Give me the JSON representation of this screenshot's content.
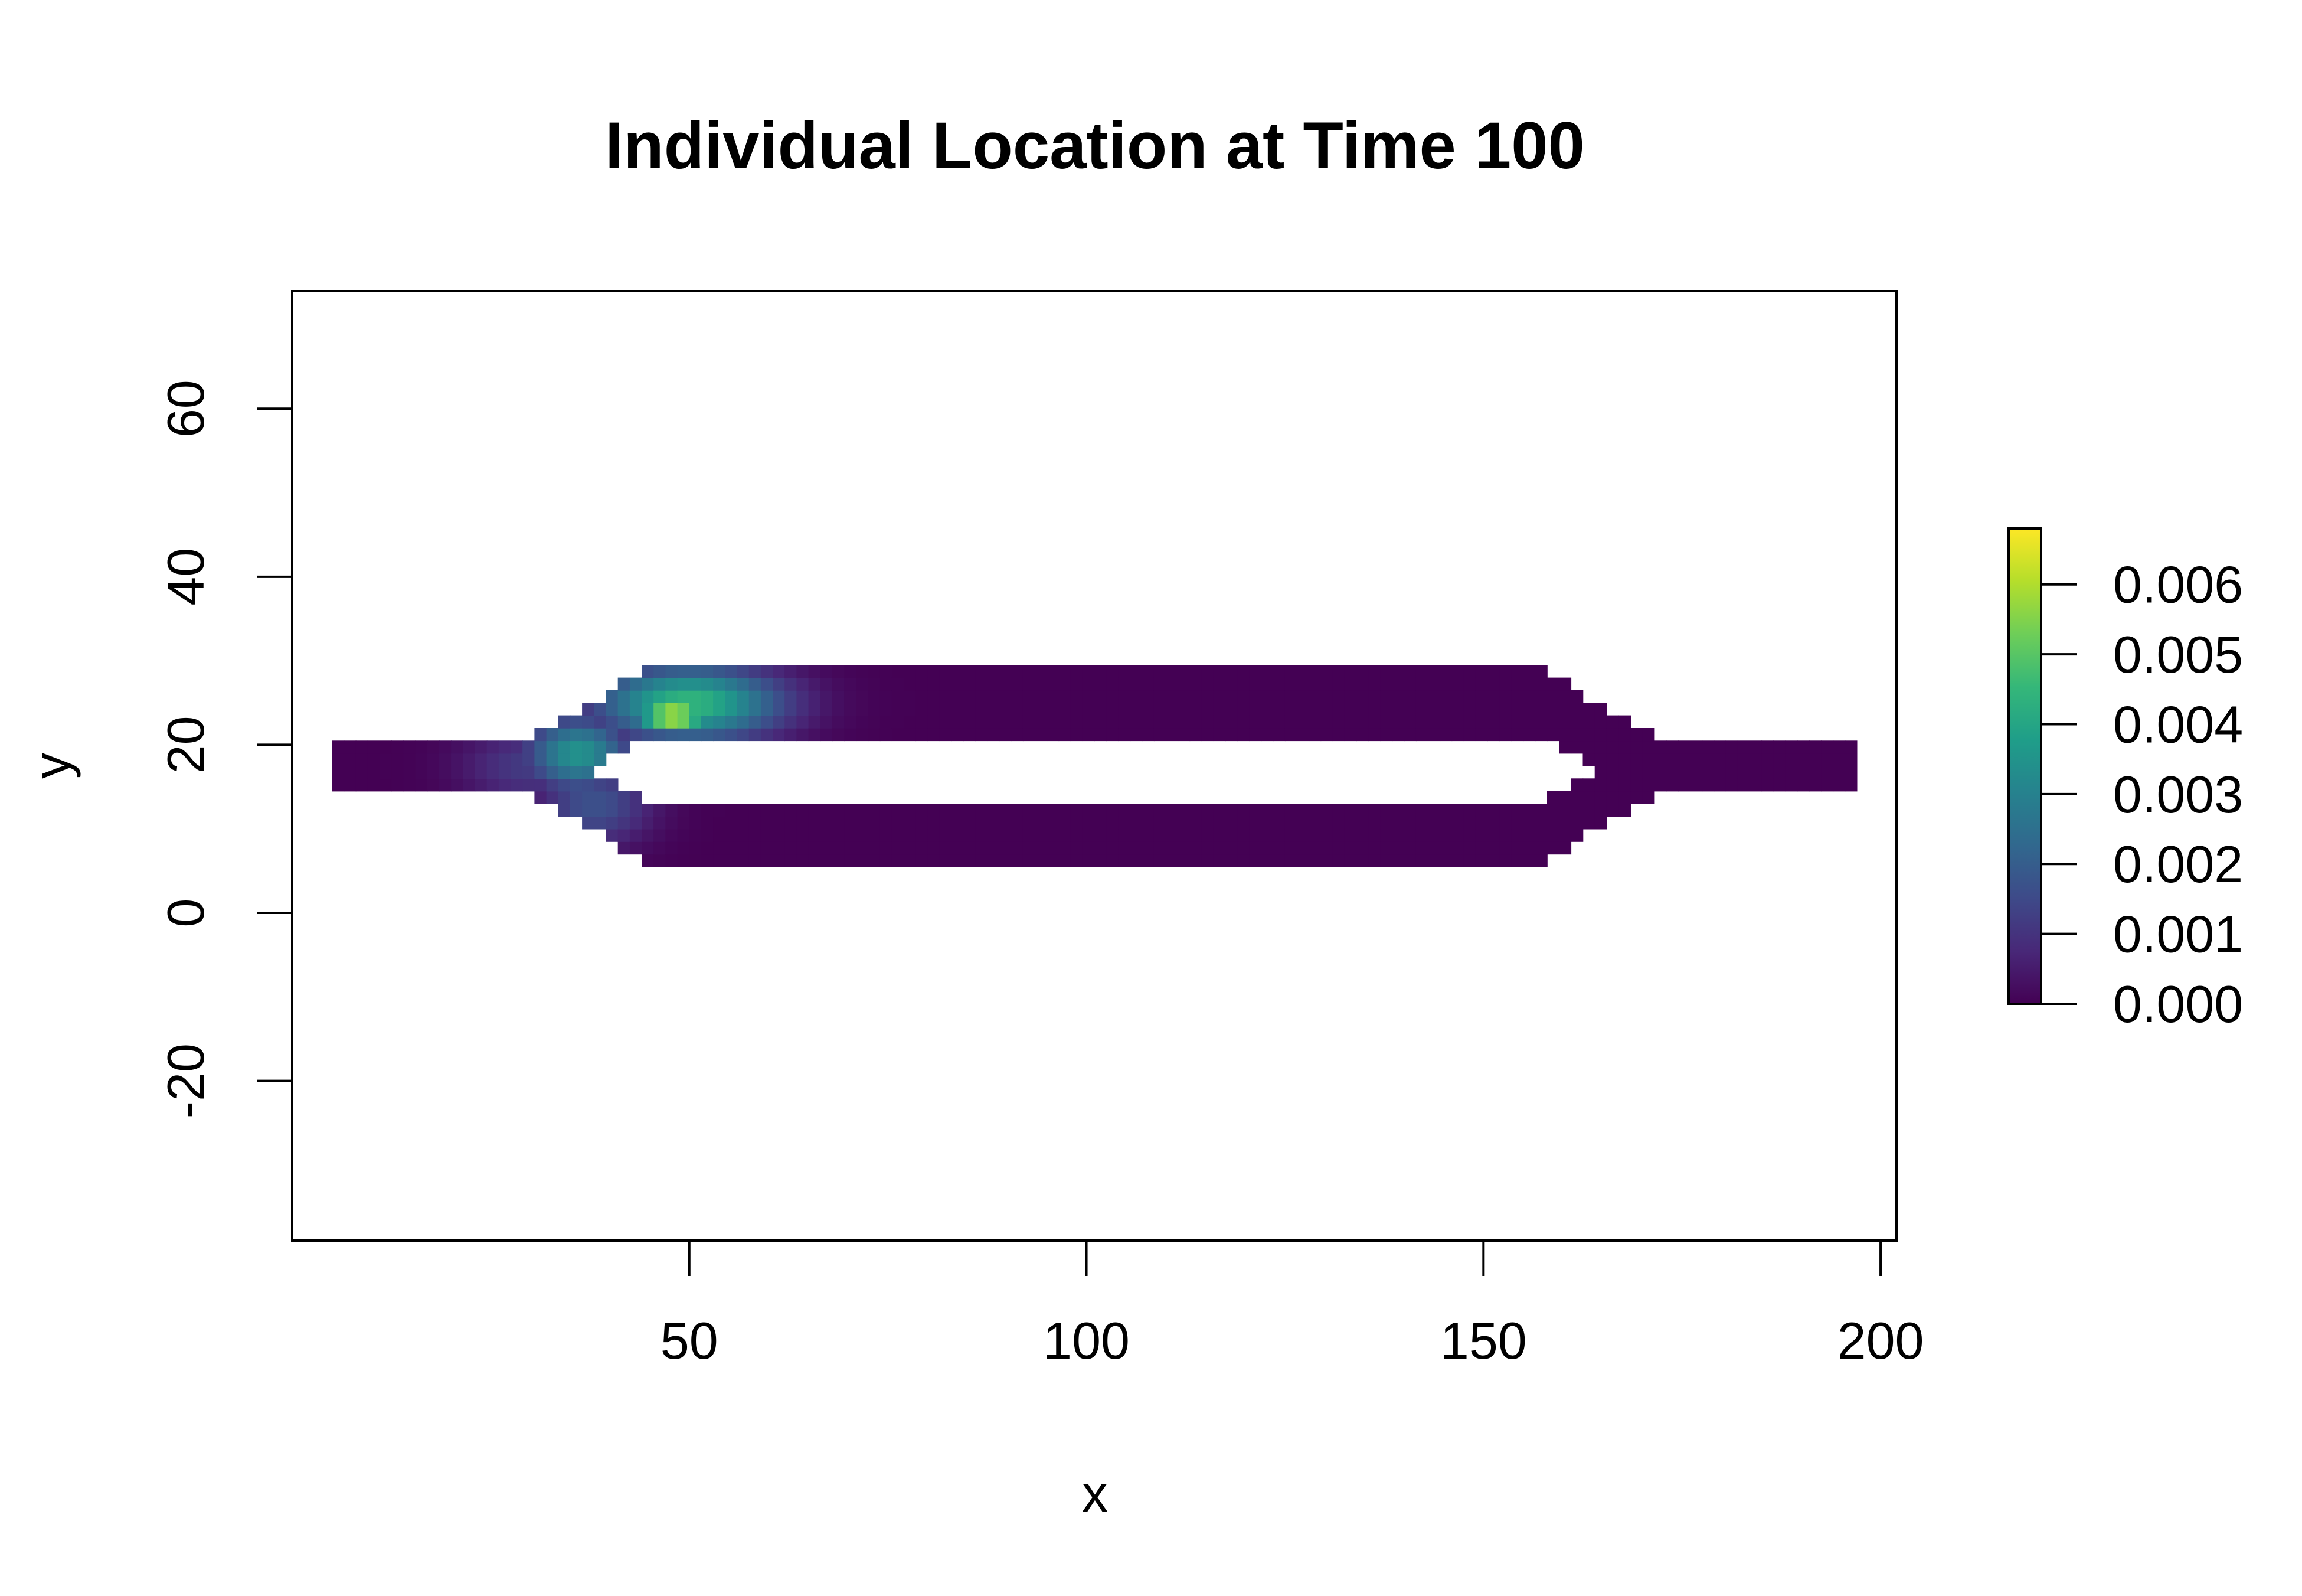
{
  "chart_data": {
    "type": "heatmap",
    "title": "Individual Location at Time 100",
    "xlabel": "x",
    "ylabel": "y",
    "xlim": [
      0,
      202
    ],
    "ylim": [
      -39,
      74
    ],
    "x_ticks": [
      50,
      100,
      150,
      200
    ],
    "x_tick_labels": [
      "50",
      "100",
      "150",
      "200"
    ],
    "y_ticks": [
      -20,
      0,
      20,
      40,
      60
    ],
    "y_tick_labels": [
      "-20",
      "0",
      "20",
      "40",
      "60"
    ],
    "grid": false,
    "colorbar": {
      "palette": "viridis",
      "range": [
        0,
        0.0068
      ],
      "ticks": [
        0.0,
        0.001,
        0.002,
        0.003,
        0.004,
        0.005,
        0.006
      ],
      "tick_labels": [
        "0.000",
        "0.001",
        "0.002",
        "0.003",
        "0.004",
        "0.005",
        "0.006"
      ],
      "colors": [
        "#440154",
        "#482878",
        "#3e4a89",
        "#31688e",
        "#26828e",
        "#1f9e89",
        "#35b779",
        "#6ece58",
        "#b5de2b",
        "#fde725"
      ]
    },
    "domain_regions": [
      {
        "name": "left-channel",
        "x": [
          5,
          30
        ],
        "y": [
          14,
          21
        ]
      },
      {
        "name": "upper-channel",
        "x": [
          45,
          157
        ],
        "y": [
          21,
          29
        ]
      },
      {
        "name": "lower-channel",
        "x": [
          45,
          157
        ],
        "y": [
          6,
          13.5
        ]
      },
      {
        "name": "right-channel",
        "x": [
          172,
          197
        ],
        "y": [
          14,
          21
        ]
      }
    ],
    "density_hotspots": [
      {
        "x": 48,
        "y": 23.5,
        "value": 0.0068,
        "sx": 3.5,
        "sy": 1.2
      },
      {
        "x": 50,
        "y": 25,
        "value": 0.0045,
        "sx": 8,
        "sy": 3
      },
      {
        "x": 36,
        "y": 19,
        "value": 0.0035,
        "sx": 4.5,
        "sy": 3
      },
      {
        "x": 38,
        "y": 13,
        "value": 0.0017,
        "sx": 5,
        "sy": 3.5
      },
      {
        "x": 30,
        "y": 17.5,
        "value": 0.0012,
        "sx": 6,
        "sy": 3
      }
    ]
  }
}
